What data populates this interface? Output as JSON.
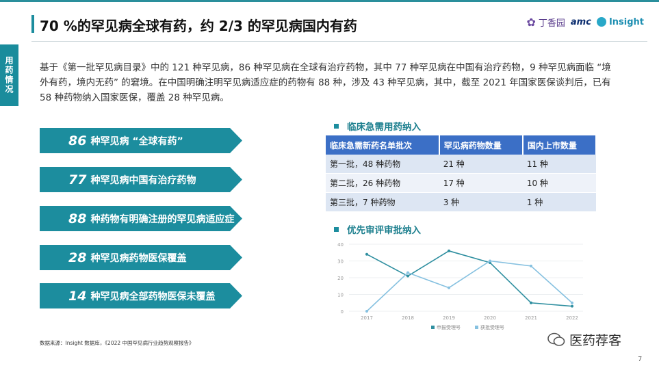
{
  "title": "70 %的罕见病全球有药，约 2/3 的罕见病国内有药",
  "side_tab": "用药情况",
  "logos": {
    "dx": "丁香园",
    "amc": "amc",
    "insight": "Insight"
  },
  "intro": "基于《第一批罕见病目录》中的 121 种罕见病，86 种罕见病在全球有治疗药物，其中 77 种罕见病在中国有治疗药物，9 种罕见病面临 “境外有药，境内无药” 的窘境。在中国明确注明罕见病适应症的药物有 88 种，涉及 43 种罕见病，其中，截至 2021 年国家医保谈判后，已有 58 种药物纳入国家医保，覆盖 28 种罕见病。",
  "arrows": [
    {
      "num": "86",
      "text": "种罕见病 “全球有药”"
    },
    {
      "num": "77",
      "text": "种罕见病中国有治疗药物"
    },
    {
      "num": "88",
      "text": "种药物有明确注册的罕见病适应症"
    },
    {
      "num": "28",
      "text": "种罕见病药物医保覆盖"
    },
    {
      "num": "14",
      "text": "种罕见病全部药物医保未覆盖"
    }
  ],
  "section1": "临床急需用药纳入",
  "table": {
    "headers": [
      "临床急需新药名单批次",
      "罕见病药物数量",
      "国内上市数量"
    ],
    "rows": [
      [
        "第一批，48 种药物",
        "21 种",
        "11 种"
      ],
      [
        "第二批，26 种药物",
        "17 种",
        "10 种"
      ],
      [
        "第三批，7 种药物",
        "3 种",
        "1 种"
      ]
    ]
  },
  "section2": "优先审评审批纳入",
  "source": "数据来源：Insight 数据库，《2022 中国罕见病行业趋势观察报告》",
  "wechat": "医药荐客",
  "page_number": "7",
  "colors": {
    "teal": "#1c8d9e",
    "table_header": "#3b6fc6",
    "series1": "#2f8fa0",
    "series2": "#86c1e0"
  },
  "chart_data": {
    "type": "line",
    "x": [
      "2017",
      "2018",
      "2019",
      "2020",
      "2021",
      "2022"
    ],
    "ylim": [
      0,
      40
    ],
    "yticks": [
      0,
      10,
      20,
      30,
      40
    ],
    "series": [
      {
        "name": "申报受理号",
        "values": [
          34,
          21,
          36,
          29,
          5,
          3
        ]
      },
      {
        "name": "获批受理号",
        "values": [
          0,
          23,
          14,
          30,
          27,
          5
        ]
      }
    ]
  }
}
